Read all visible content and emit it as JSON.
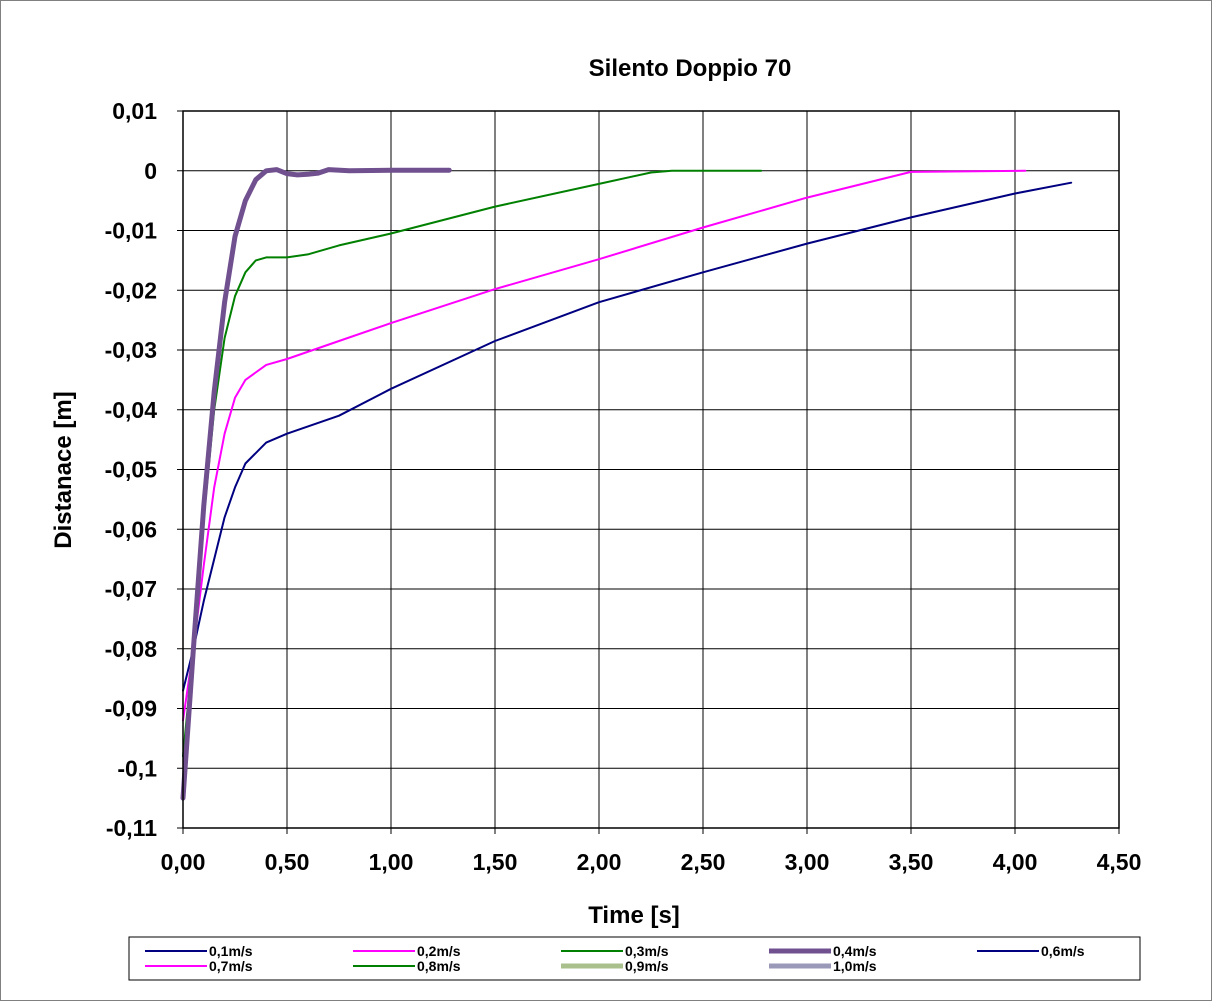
{
  "chart_data": {
    "type": "line",
    "title": "Silento Doppio 70",
    "xlabel": "Time [s]",
    "ylabel": "Distanace [m]",
    "xlim": [
      0,
      4.5
    ],
    "ylim": [
      -0.11,
      0.01
    ],
    "x_ticks": [
      "0,00",
      "0,50",
      "1,00",
      "1,50",
      "2,00",
      "2,50",
      "3,00",
      "3,50",
      "4,00",
      "4,50"
    ],
    "y_ticks": [
      "0,01",
      "0",
      "-0,01",
      "-0,02",
      "-0,03",
      "-0,04",
      "-0,05",
      "-0,06",
      "-0,07",
      "-0,08",
      "-0,09",
      "-0,1",
      "-0,11"
    ],
    "grid": true,
    "legend_position": "bottom",
    "series": [
      {
        "name": "0,1m/s",
        "color": "#000080",
        "width": 2,
        "points": [
          [
            0,
            -0.087
          ],
          [
            0.05,
            -0.08
          ],
          [
            0.1,
            -0.072
          ],
          [
            0.15,
            -0.065
          ],
          [
            0.2,
            -0.058
          ],
          [
            0.25,
            -0.053
          ],
          [
            0.3,
            -0.049
          ],
          [
            0.4,
            -0.0455
          ],
          [
            0.5,
            -0.044
          ],
          [
            0.75,
            -0.041
          ],
          [
            1.0,
            -0.0365
          ],
          [
            1.5,
            -0.0285
          ],
          [
            2.0,
            -0.022
          ],
          [
            2.5,
            -0.017
          ],
          [
            3.0,
            -0.0122
          ],
          [
            3.5,
            -0.0078
          ],
          [
            4.0,
            -0.0038
          ],
          [
            4.27,
            -0.002
          ]
        ]
      },
      {
        "name": "0,2m/s",
        "color": "#FF00FF",
        "width": 2,
        "points": [
          [
            0,
            -0.092
          ],
          [
            0.05,
            -0.08
          ],
          [
            0.1,
            -0.066
          ],
          [
            0.15,
            -0.053
          ],
          [
            0.2,
            -0.044
          ],
          [
            0.25,
            -0.038
          ],
          [
            0.3,
            -0.035
          ],
          [
            0.4,
            -0.0325
          ],
          [
            0.5,
            -0.0315
          ],
          [
            0.75,
            -0.0285
          ],
          [
            1.0,
            -0.0255
          ],
          [
            1.5,
            -0.0198
          ],
          [
            2.0,
            -0.0148
          ],
          [
            2.5,
            -0.0095
          ],
          [
            3.0,
            -0.0045
          ],
          [
            3.5,
            -0.0002
          ],
          [
            4.05,
            0
          ]
        ]
      },
      {
        "name": "0,3m/s",
        "color": "#008000",
        "width": 2,
        "points": [
          [
            0,
            -0.098
          ],
          [
            0.05,
            -0.08
          ],
          [
            0.1,
            -0.058
          ],
          [
            0.15,
            -0.04
          ],
          [
            0.2,
            -0.028
          ],
          [
            0.25,
            -0.021
          ],
          [
            0.3,
            -0.017
          ],
          [
            0.35,
            -0.015
          ],
          [
            0.4,
            -0.0145
          ],
          [
            0.5,
            -0.0145
          ],
          [
            0.6,
            -0.014
          ],
          [
            0.75,
            -0.0125
          ],
          [
            1.0,
            -0.0105
          ],
          [
            1.5,
            -0.006
          ],
          [
            2.0,
            -0.0022
          ],
          [
            2.25,
            -0.0003
          ],
          [
            2.35,
            0
          ],
          [
            2.78,
            0
          ]
        ]
      },
      {
        "name": "0,4m/s",
        "color": "#70508F",
        "width": 5,
        "points": [
          [
            0,
            -0.105
          ],
          [
            0.05,
            -0.08
          ],
          [
            0.1,
            -0.056
          ],
          [
            0.15,
            -0.037
          ],
          [
            0.2,
            -0.022
          ],
          [
            0.25,
            -0.011
          ],
          [
            0.3,
            -0.005
          ],
          [
            0.35,
            -0.0015
          ],
          [
            0.4,
            0
          ],
          [
            0.45,
            0.0002
          ],
          [
            0.5,
            -0.0005
          ],
          [
            0.55,
            -0.0007
          ],
          [
            0.6,
            -0.0006
          ],
          [
            0.65,
            -0.0004
          ],
          [
            0.7,
            0.0002
          ],
          [
            0.8,
            0
          ],
          [
            1.0,
            0.0001
          ],
          [
            1.28,
            0.0001
          ]
        ]
      },
      {
        "name": "0,6m/s",
        "color": "#000080",
        "width": 2,
        "points": []
      },
      {
        "name": "0,7m/s",
        "color": "#FF00FF",
        "width": 2,
        "points": []
      },
      {
        "name": "0,8m/s",
        "color": "#008000",
        "width": 2,
        "points": []
      },
      {
        "name": "0,9m/s",
        "color": "#A9C08C",
        "width": 5,
        "points": []
      },
      {
        "name": "1,0m/s",
        "color": "#9A9AB8",
        "width": 5,
        "points": []
      }
    ]
  }
}
